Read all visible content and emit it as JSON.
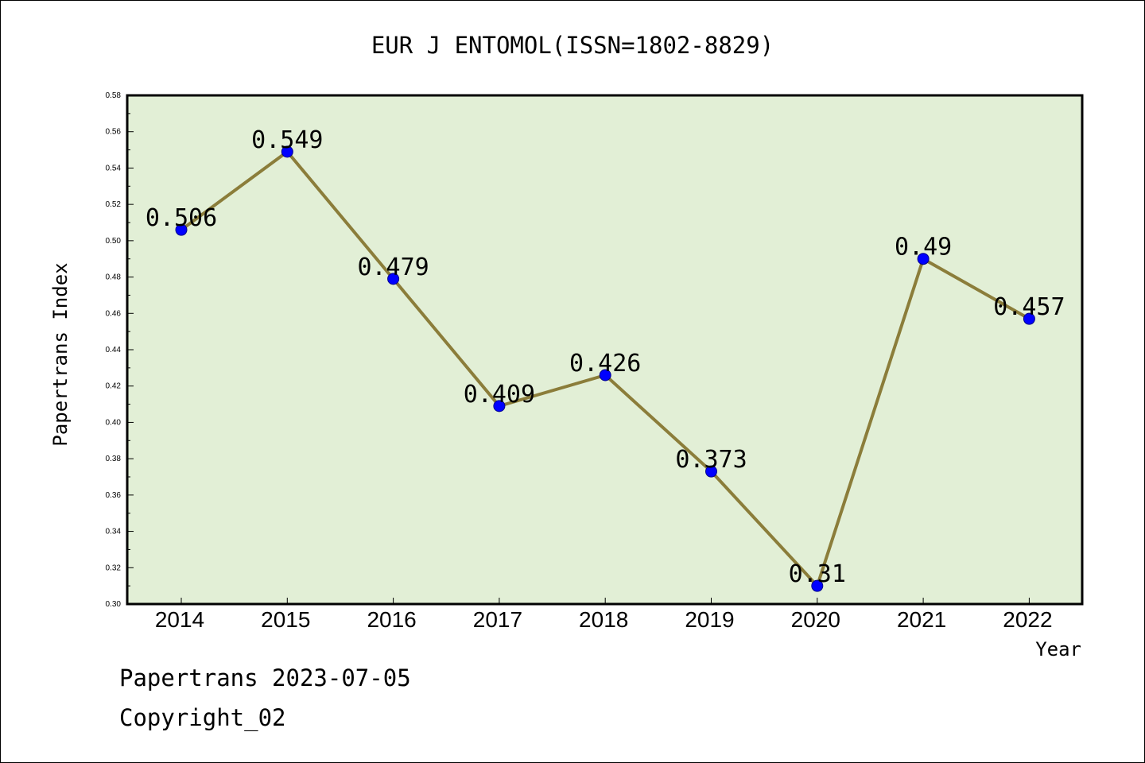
{
  "chart_data": {
    "type": "line",
    "title": "EUR J ENTOMOL(ISSN=1802-8829)",
    "xlabel": "Year",
    "ylabel": "Papertrans Index",
    "categories": [
      "2014",
      "2015",
      "2016",
      "2017",
      "2018",
      "2019",
      "2020",
      "2021",
      "2022"
    ],
    "series": [
      {
        "values": [
          0.506,
          0.549,
          0.479,
          0.409,
          0.426,
          0.373,
          0.31,
          0.49,
          0.457
        ],
        "labels": [
          "0.506",
          "0.549",
          "0.479",
          "0.409",
          "0.426",
          "0.373",
          "0.31",
          "0.49",
          "0.457"
        ]
      }
    ],
    "ylim": [
      0.3,
      0.58
    ],
    "yticks": [
      "0.30",
      "0.32",
      "0.34",
      "0.36",
      "0.38",
      "0.40",
      "0.42",
      "0.44",
      "0.46",
      "0.48",
      "0.50",
      "0.52",
      "0.54",
      "0.56",
      "0.58"
    ],
    "grid": false,
    "legend": "none",
    "colors": {
      "plot_background": "#e2efd6",
      "line": "#8b7d3a",
      "marker": "#0000ff"
    }
  },
  "footer": {
    "line1": "Papertrans 2023-07-05",
    "line2": "Copyright_02"
  }
}
